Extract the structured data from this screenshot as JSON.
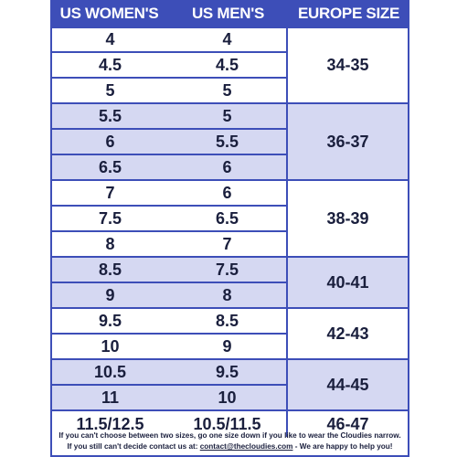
{
  "headers": [
    "US WOMEN'S",
    "US MEN'S",
    "EUROPE SIZE"
  ],
  "rows": [
    {
      "women": "4",
      "men": "4"
    },
    {
      "women": "4.5",
      "men": "4.5"
    },
    {
      "women": "5",
      "men": "5"
    },
    {
      "women": "5.5",
      "men": "5"
    },
    {
      "women": "6",
      "men": "5.5"
    },
    {
      "women": "6.5",
      "men": "6"
    },
    {
      "women": "7",
      "men": "6"
    },
    {
      "women": "7.5",
      "men": "6.5"
    },
    {
      "women": "8",
      "men": "7"
    },
    {
      "women": "8.5",
      "men": "7.5"
    },
    {
      "women": "9",
      "men": "8"
    },
    {
      "women": "9.5",
      "men": "8.5"
    },
    {
      "women": "10",
      "men": "9"
    },
    {
      "women": "10.5",
      "men": "9.5"
    },
    {
      "women": "11",
      "men": "10"
    },
    {
      "women": "11.5/12.5",
      "men": "10.5/11.5"
    }
  ],
  "europe_groups": [
    {
      "label": "34-35",
      "rows": 3,
      "shaded": false
    },
    {
      "label": "36-37",
      "rows": 3,
      "shaded": true
    },
    {
      "label": "38-39",
      "rows": 3,
      "shaded": false
    },
    {
      "label": "40-41",
      "rows": 2,
      "shaded": true
    },
    {
      "label": "42-43",
      "rows": 2,
      "shaded": false
    },
    {
      "label": "44-45",
      "rows": 2,
      "shaded": true
    },
    {
      "label": "46-47",
      "rows": 1,
      "shaded": false
    }
  ],
  "footer": {
    "line1": "If you can't choose between two sizes, go one size down if you like to wear the Cloudies narrow.",
    "line2_prefix": "If you still can't decide contact us at: ",
    "email": "contact@thecloudies.com",
    "line2_suffix": " - We are happy to help you!"
  },
  "colors": {
    "header": "#3d4eb8",
    "shaded": "#d5d8f2",
    "text": "#1a1f3d"
  }
}
